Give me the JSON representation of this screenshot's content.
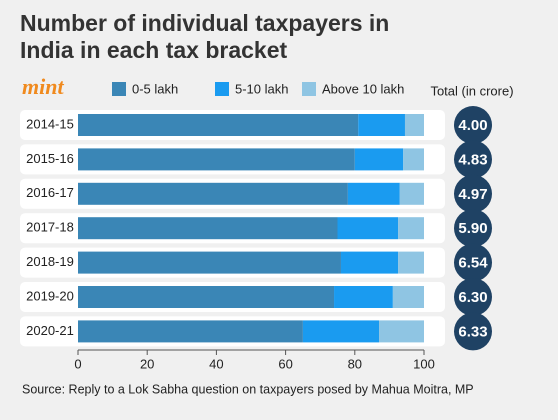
{
  "chart_data": {
    "type": "stacked-barh",
    "title": "Number of individual taxpayers in India in each tax bracket",
    "brand": "mint",
    "categories": [
      "2014-15",
      "2015-16",
      "2016-17",
      "2017-18",
      "2018-19",
      "2019-20",
      "2020-21"
    ],
    "series": [
      {
        "name": "0-5 lakh",
        "color": "#3a86b6",
        "values": [
          81,
          80,
          78,
          75,
          76,
          74,
          65
        ]
      },
      {
        "name": "5-10 lakh",
        "color": "#1a9bf0",
        "values": [
          13.5,
          14,
          15,
          17.5,
          16.5,
          17,
          22
        ]
      },
      {
        "name": "Above 10 lakh",
        "color": "#8fc5e3",
        "values": [
          5.5,
          6,
          7,
          7.5,
          7.5,
          9,
          13
        ]
      }
    ],
    "totals": {
      "title": "Total (in crore)",
      "values": [
        4,
        4.83,
        4.97,
        5.9,
        6.54,
        6.3,
        6.33
      ],
      "value_labels": [
        "4.00",
        "4.83",
        "4.97",
        "5.90",
        "6.54",
        "6.30",
        "6.33"
      ]
    },
    "xlim": [
      0,
      100
    ],
    "xticks": [
      0,
      20,
      40,
      60,
      80,
      100
    ],
    "source": "Source: Reply to a Lok Sabha question on taxpayers posed by Mahua Moitra, MP"
  }
}
